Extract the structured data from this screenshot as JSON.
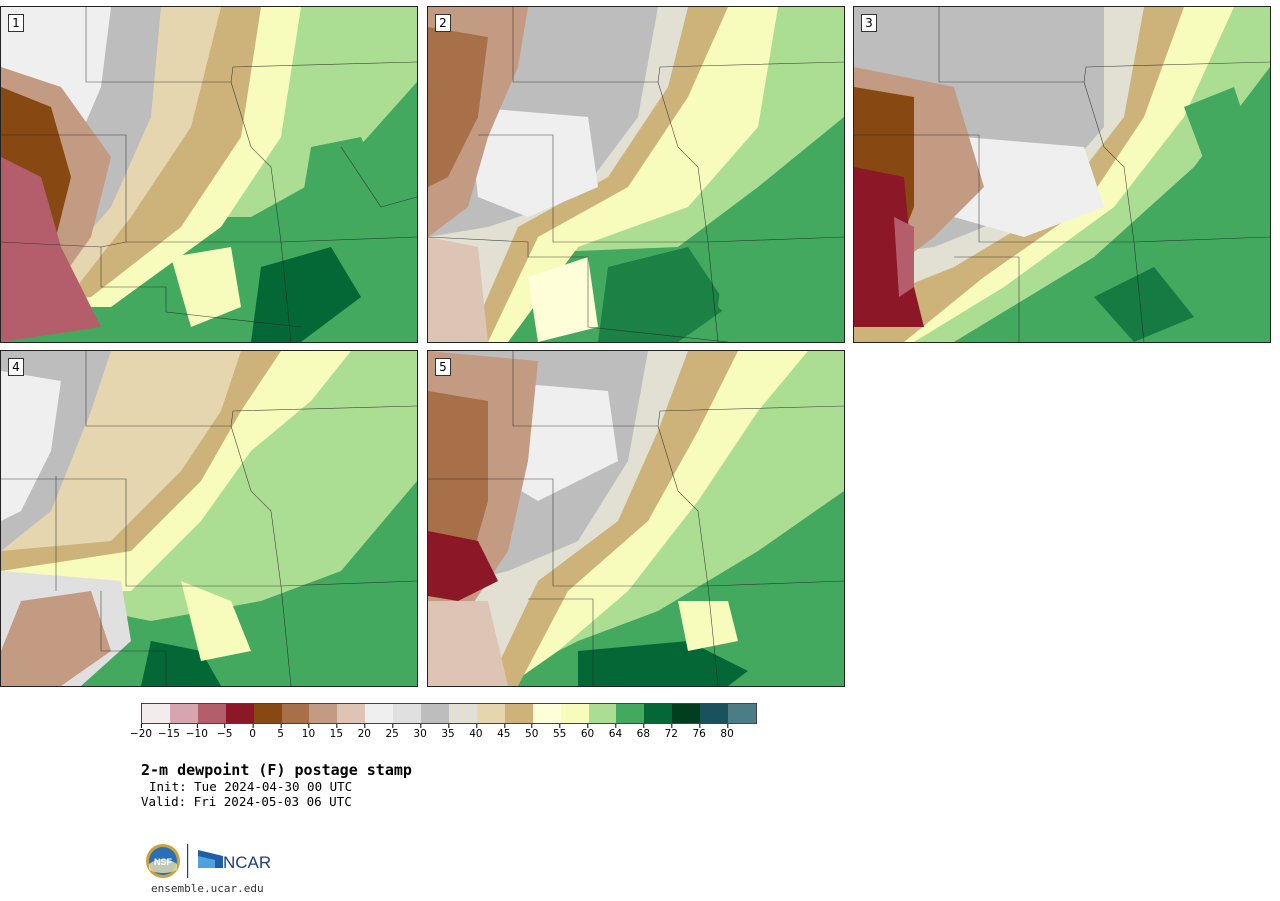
{
  "panels": [
    {
      "label": "1"
    },
    {
      "label": "2"
    },
    {
      "label": "3"
    },
    {
      "label": "4"
    },
    {
      "label": "5"
    }
  ],
  "colorbar": {
    "colors": [
      "#f4ebec",
      "#d7a5ae",
      "#b45e6c",
      "#8b1727",
      "#874811",
      "#a77048",
      "#c39b82",
      "#dec4b4",
      "#efefef",
      "#e0e0e0",
      "#bdbdbd",
      "#e1e0d3",
      "#e6d6b0",
      "#cdb37a",
      "#fefed8",
      "#f7fbbb",
      "#abde93",
      "#43a95e",
      "#036836",
      "#003e1f",
      "#19525c",
      "#4c7c85"
    ],
    "tick_labels": [
      "−20",
      "−15",
      "−10",
      "−5",
      "0",
      "5",
      "10",
      "15",
      "20",
      "25",
      "30",
      "35",
      "40",
      "45",
      "50",
      "55",
      "60",
      "64",
      "68",
      "72",
      "76",
      "80"
    ]
  },
  "title": "2-m dewpoint (F) postage stamp",
  "init_line": "Init: Tue 2024-04-30 00 UTC",
  "valid_line": "Valid: Fri 2024-05-03 06 UTC",
  "logo": {
    "nsf_text": "NSF",
    "ncar_text": "NCAR"
  },
  "website": "ensemble.ucar.edu"
}
